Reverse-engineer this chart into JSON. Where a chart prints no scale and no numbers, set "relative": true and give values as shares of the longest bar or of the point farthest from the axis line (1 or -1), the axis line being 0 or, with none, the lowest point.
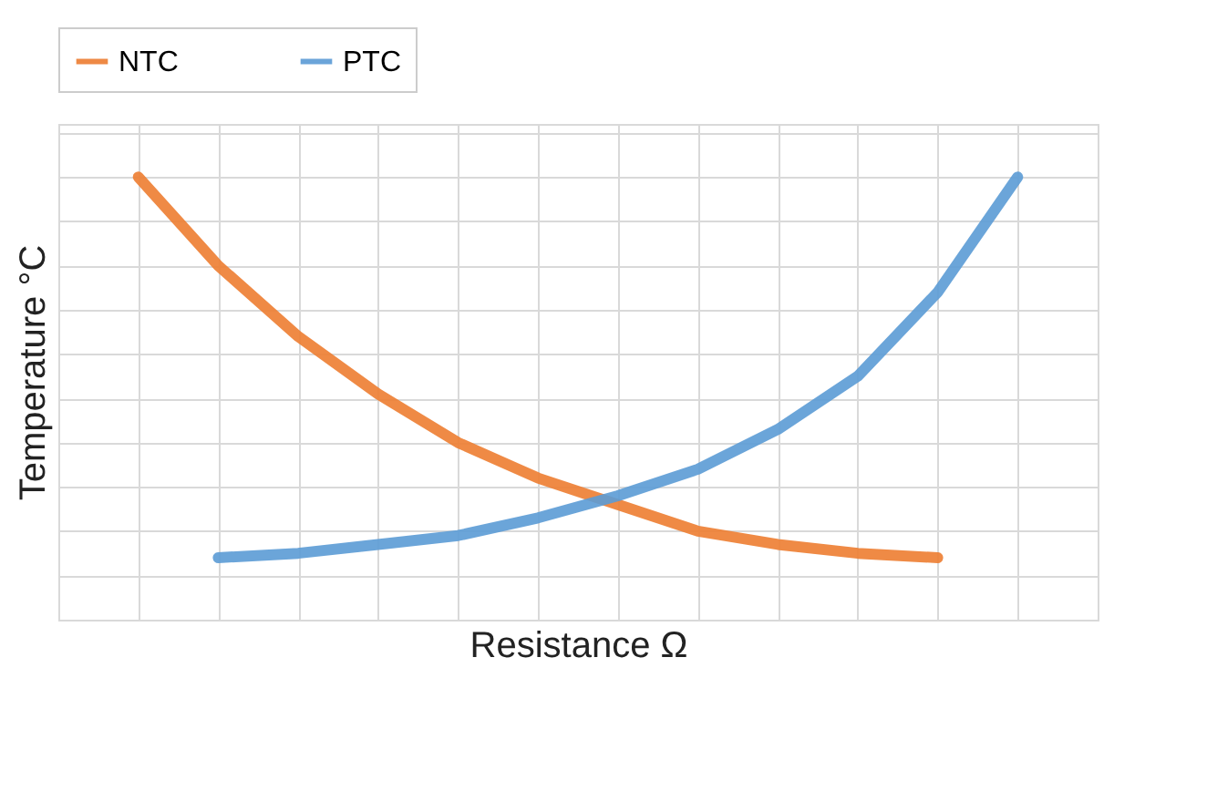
{
  "chart_data": {
    "type": "line",
    "xlabel": "Resistance Ω",
    "ylabel": "Temperature °C",
    "relative": true,
    "grid": true,
    "legend": "top",
    "tick_labels": false,
    "marker": "none",
    "line_style": "solid",
    "categories": [
      null,
      null,
      null,
      null,
      null,
      null,
      null,
      null,
      null,
      null,
      null,
      null
    ],
    "series": [
      {
        "name": "NTC",
        "color": "#ed7d31",
        "values": [
          1,
          0.8,
          0.64,
          0.51,
          0.4,
          0.32,
          0.26,
          0.2,
          0.17,
          0.15,
          0.14,
          null
        ]
      },
      {
        "name": "PTC",
        "color": "#5b9bd5",
        "values": [
          null,
          0.14,
          0.15,
          0.17,
          0.19,
          0.23,
          0.28,
          0.34,
          0.43,
          0.55,
          0.74,
          1
        ]
      }
    ]
  }
}
